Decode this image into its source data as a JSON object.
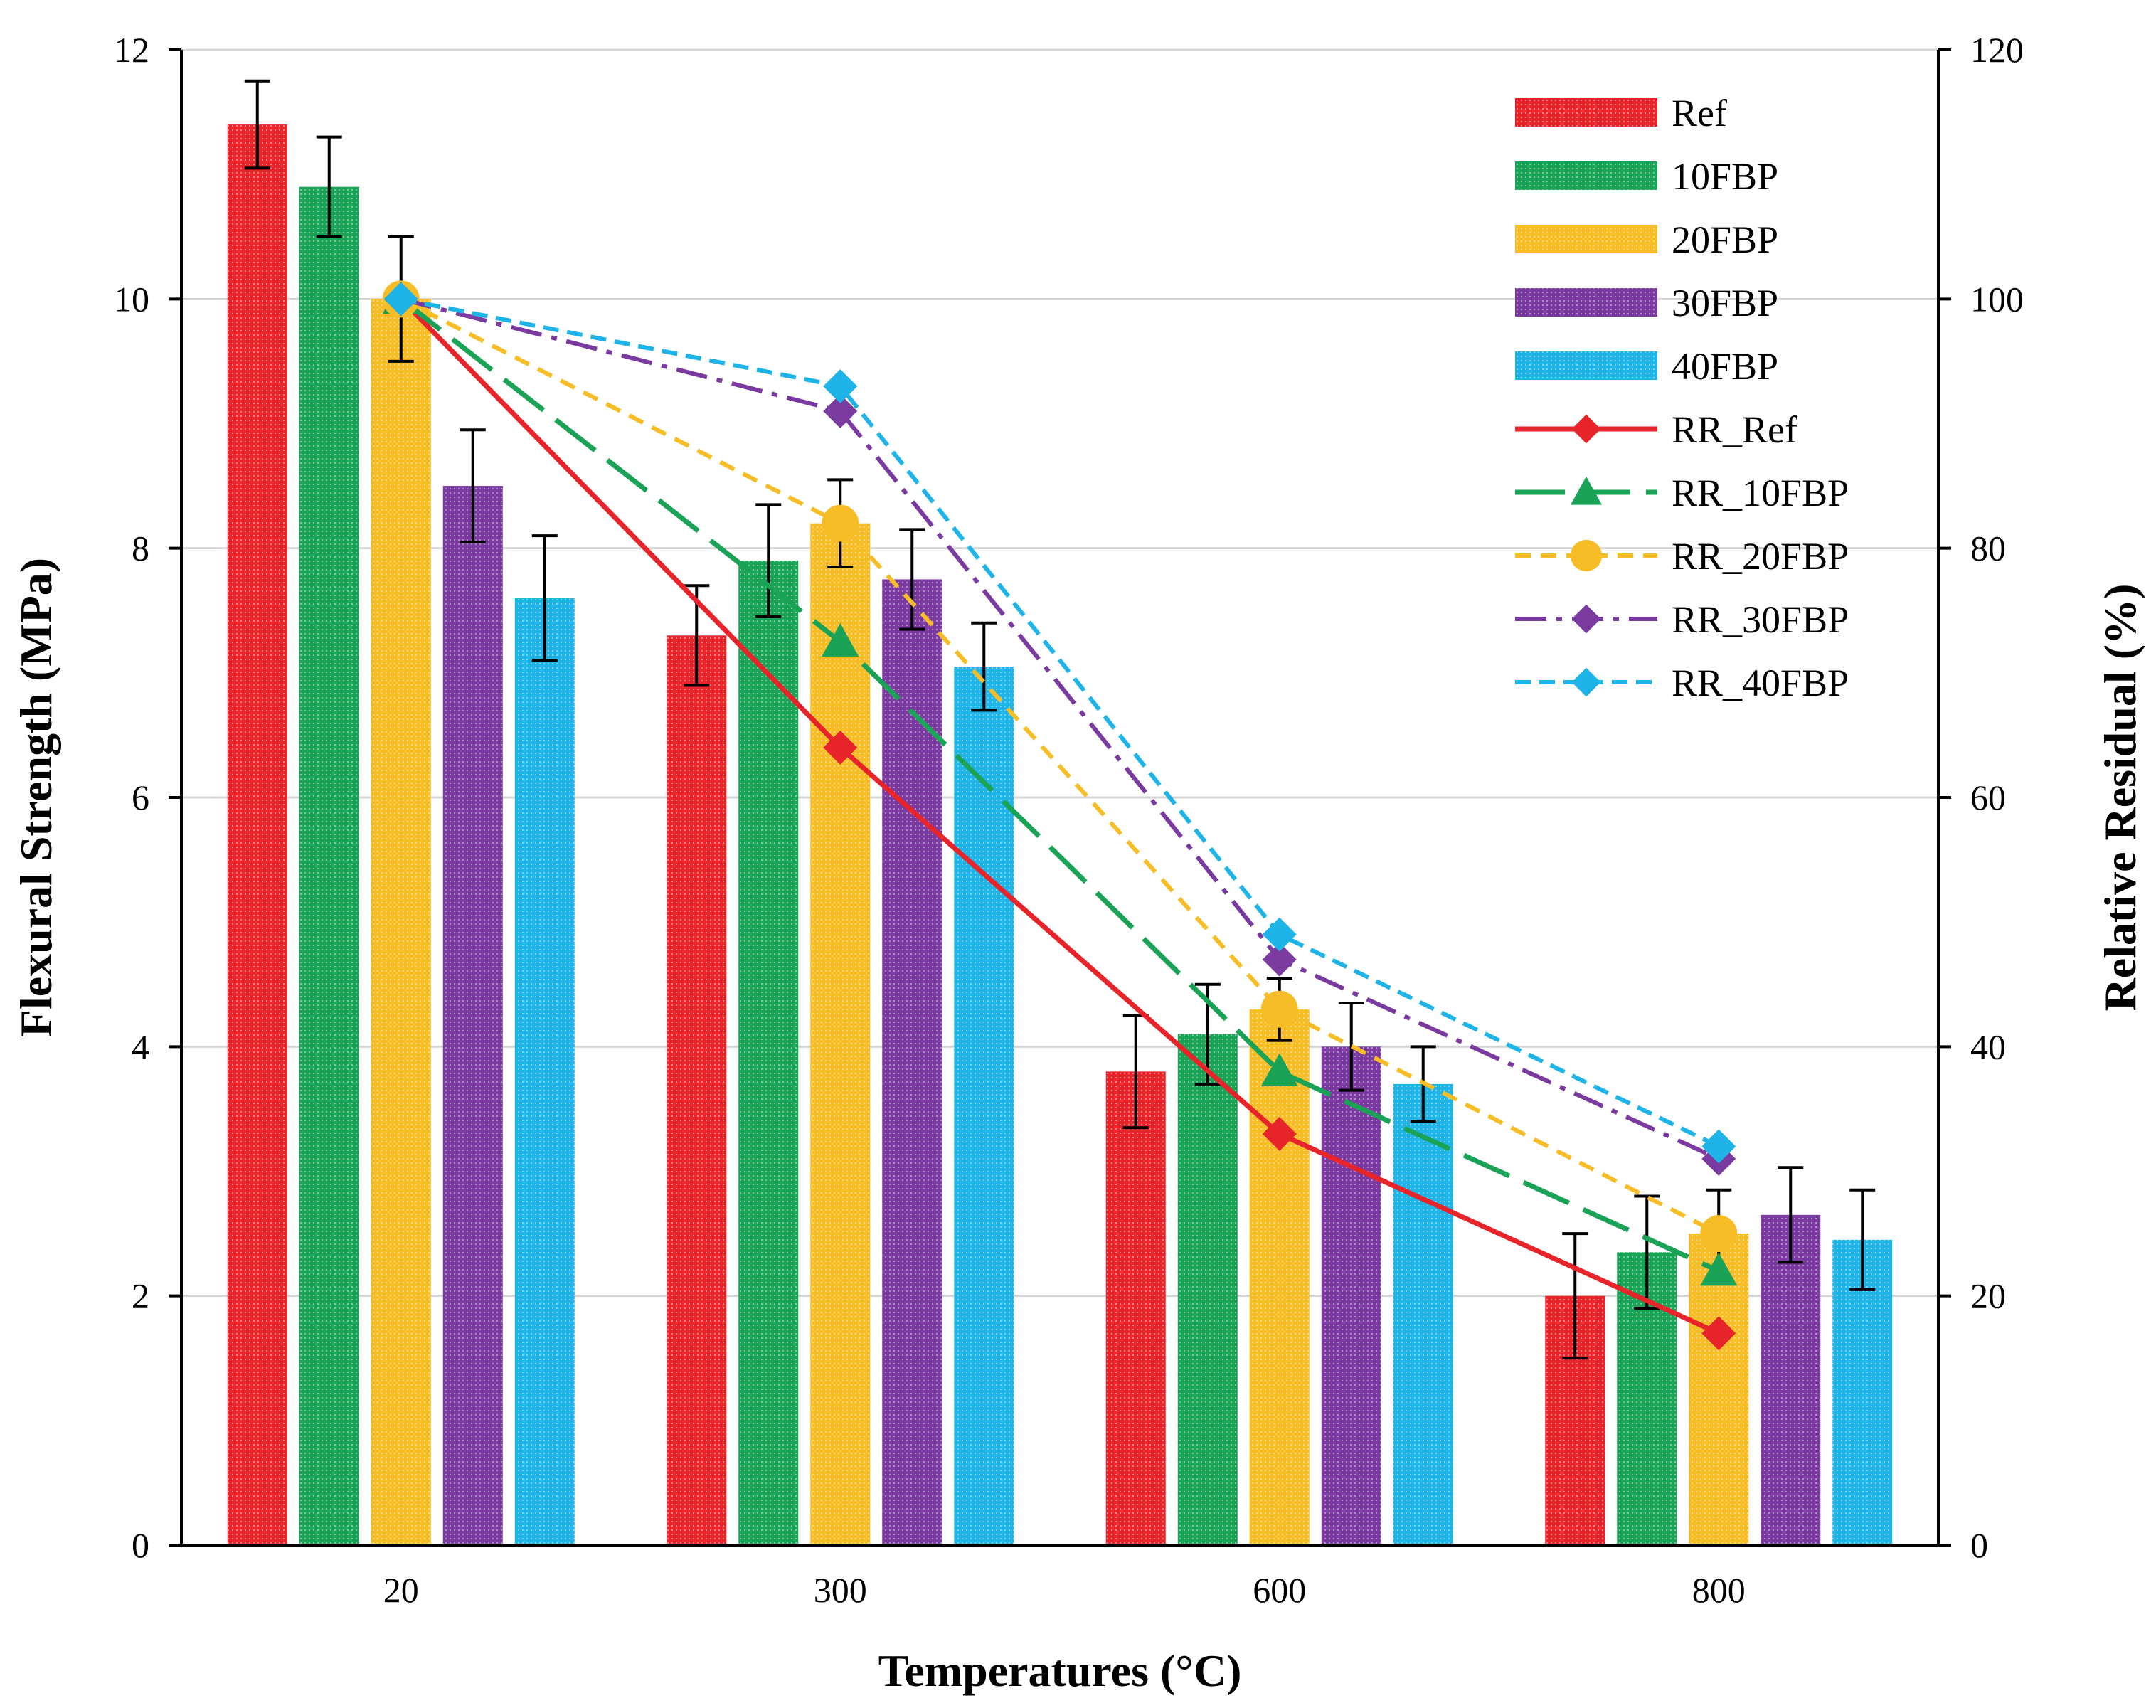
{
  "chart_data": {
    "type": "bar",
    "title": "",
    "xlabel": "Temperatures (°C)",
    "ylabel": "Flexural Strength (MPa)",
    "y2label": "Relative Residual (%)",
    "ylim": [
      0,
      12
    ],
    "y2lim": [
      0,
      120
    ],
    "yticks": [
      "0",
      "2",
      "4",
      "6",
      "8",
      "10",
      "12"
    ],
    "y2ticks": [
      "0",
      "20",
      "40",
      "60",
      "80",
      "100",
      "120"
    ],
    "grid": true,
    "legend_position": "top-right",
    "categories": [
      "20",
      "300",
      "600",
      "800"
    ],
    "series": [
      {
        "name": "Ref",
        "color": "#e8242b",
        "values": [
          11.4,
          7.3,
          3.8,
          2.0
        ],
        "errors": [
          0.35,
          0.4,
          0.45,
          0.5
        ]
      },
      {
        "name": "10FBP",
        "color": "#1aa356",
        "values": [
          10.9,
          7.9,
          4.1,
          2.35
        ],
        "errors": [
          0.4,
          0.45,
          0.4,
          0.45
        ]
      },
      {
        "name": "20FBP",
        "color": "#f7bd27",
        "values": [
          10.0,
          8.2,
          4.3,
          2.5
        ],
        "errors": [
          0.5,
          0.35,
          0.25,
          0.35
        ]
      },
      {
        "name": "30FBP",
        "color": "#7a3aa0",
        "values": [
          8.5,
          7.75,
          4.0,
          2.65
        ],
        "errors": [
          0.45,
          0.4,
          0.35,
          0.38
        ]
      },
      {
        "name": "40FBP",
        "color": "#1eb4e8",
        "values": [
          7.6,
          7.05,
          3.7,
          2.45
        ],
        "errors": [
          0.5,
          0.35,
          0.3,
          0.4
        ]
      }
    ],
    "line_series": [
      {
        "name": "RR_Ref",
        "color": "#e8242b",
        "marker": "diamond",
        "dash": "",
        "width": 7,
        "values": [
          100,
          64,
          33,
          17
        ]
      },
      {
        "name": "RR_10FBP",
        "color": "#1aa356",
        "marker": "triangle",
        "dash": "70,22",
        "width": 7,
        "values": [
          100,
          72.5,
          38,
          22
        ]
      },
      {
        "name": "RR_20FBP",
        "color": "#f7bd27",
        "marker": "circle",
        "dash": "22,14",
        "width": 6,
        "values": [
          100,
          82,
          43,
          25
        ]
      },
      {
        "name": "RR_30FBP",
        "color": "#7a3aa0",
        "marker": "diamond",
        "dash": "44,14,8,14",
        "width": 6,
        "values": [
          100,
          91,
          47,
          31
        ]
      },
      {
        "name": "RR_40FBP",
        "color": "#1eb4e8",
        "marker": "diamond",
        "dash": "22,12",
        "width": 6,
        "values": [
          100,
          93,
          49,
          32
        ]
      }
    ]
  }
}
